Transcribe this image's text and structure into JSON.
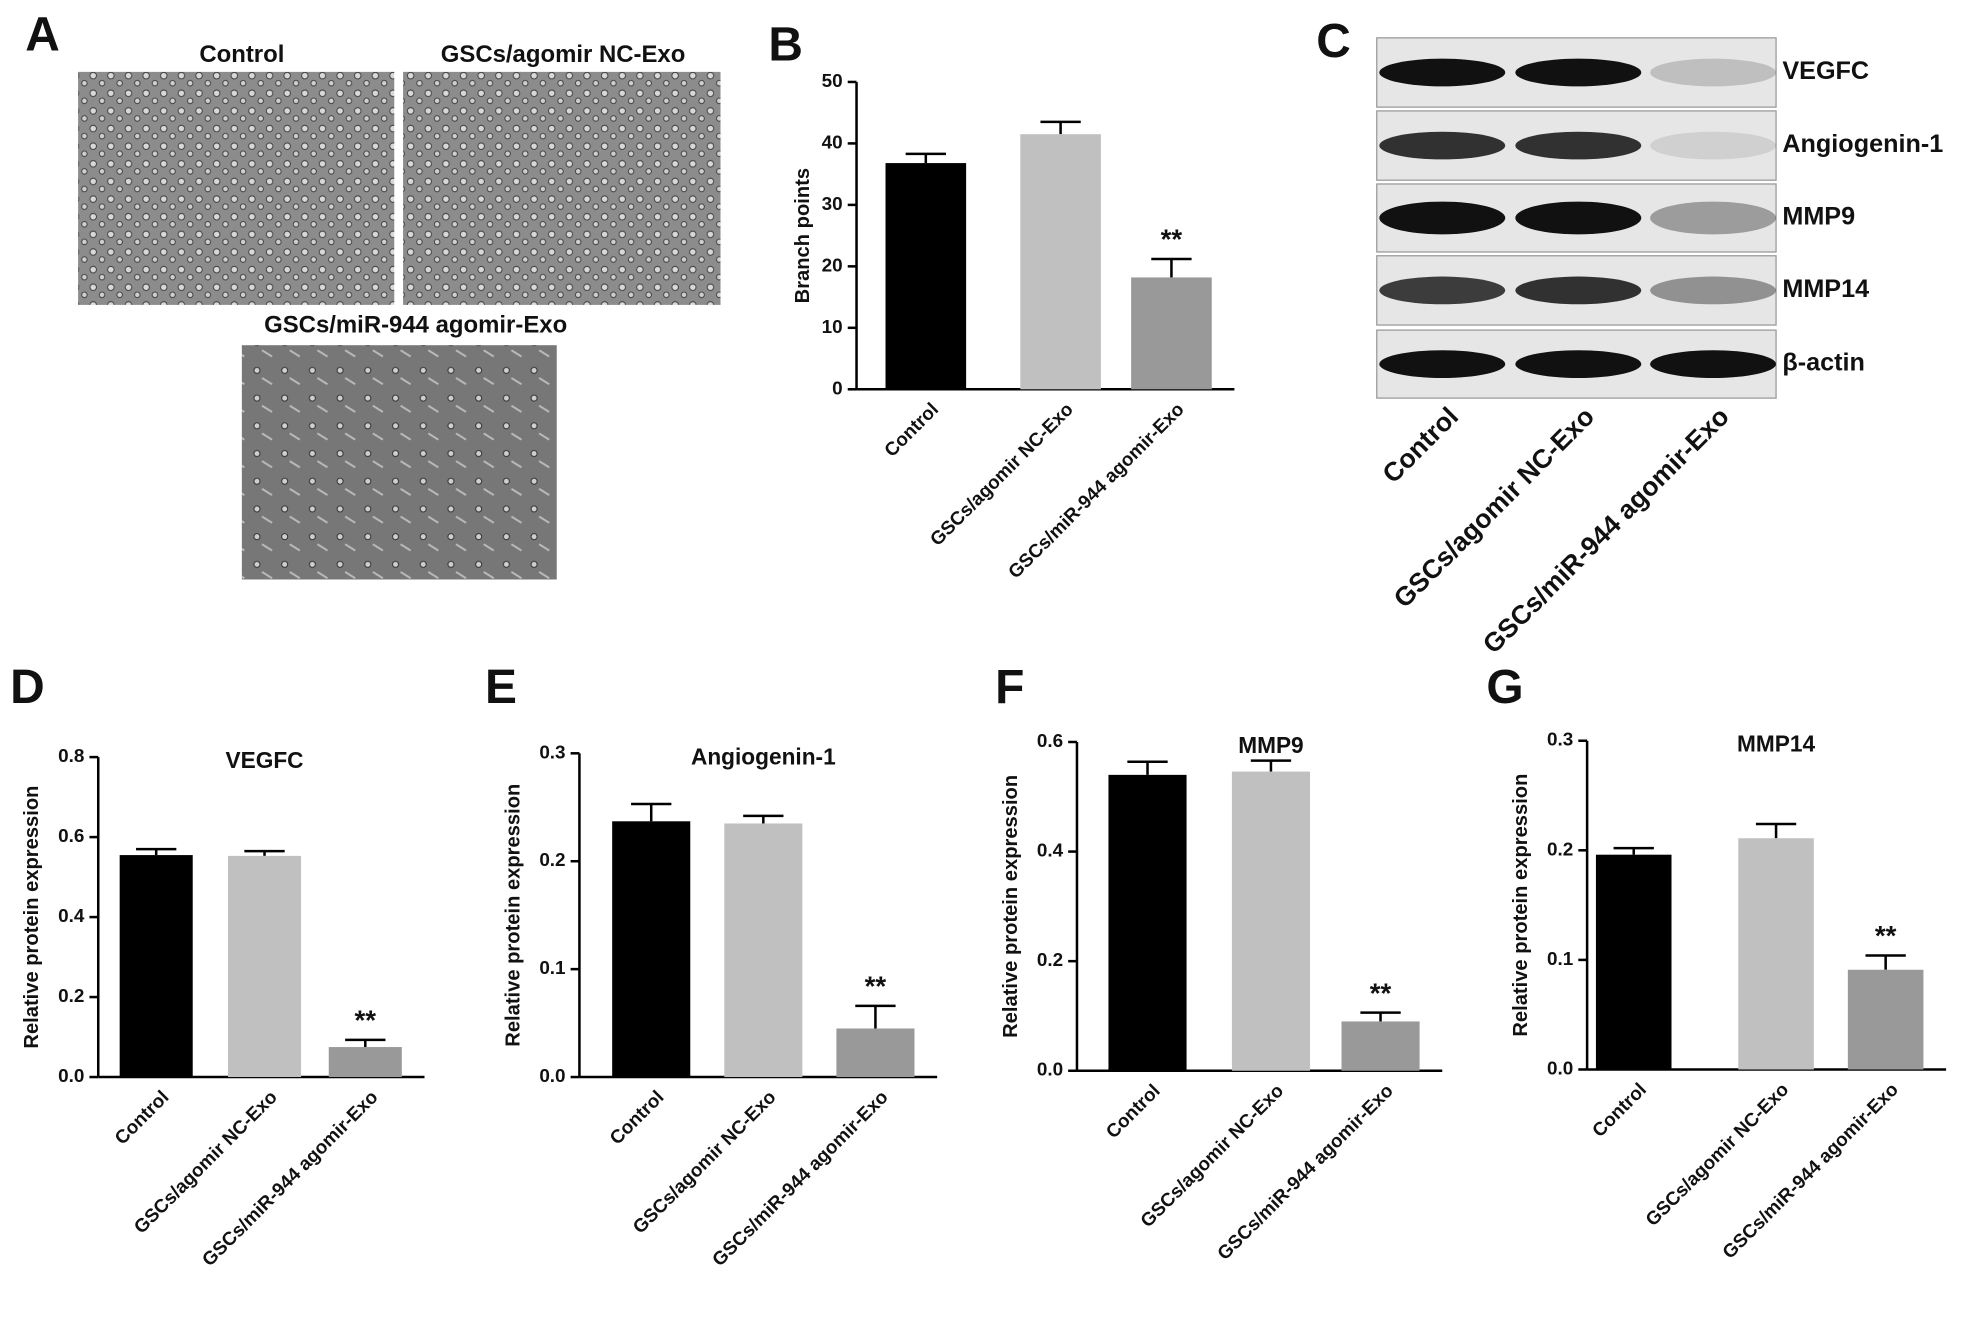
{
  "panel_labels": [
    "A",
    "B",
    "C",
    "D",
    "E",
    "F",
    "G"
  ],
  "micrographs": {
    "labels": [
      "Control",
      "GSCs/agomir NC-Exo",
      "GSCs/miR-944 agomir-Exo"
    ]
  },
  "blot": {
    "proteins": [
      "VEGFC",
      "Angiogenin-1",
      "MMP9",
      "MMP14",
      "β-actin"
    ],
    "lanes": [
      "Control",
      "GSCs/agomir NC-Exo",
      "GSCs/miR-944 agomir-Exo"
    ]
  },
  "chart_data": [
    {
      "type": "bar",
      "y_label": "Branch points",
      "categories": [
        "Control",
        "GSCs/agomir NC-Exo",
        "GSCs/miR-944 agomir-Exo"
      ],
      "values": [
        36.8,
        41.5,
        18.2
      ],
      "errors": [
        1.5,
        2.0,
        3.0
      ],
      "colors": [
        "#000000",
        "#c0c0c0",
        "#999999"
      ],
      "significance": [
        null,
        null,
        "**"
      ],
      "ylim": [
        0,
        50
      ],
      "yticks": [
        0,
        10,
        20,
        30,
        40,
        50
      ]
    },
    {
      "type": "bar",
      "title": "VEGFC",
      "y_label": "Relative protein expression",
      "categories": [
        "Control",
        "GSCs/agomir NC-Exo",
        "GSCs/miR-944 agomir-Exo"
      ],
      "values": [
        0.555,
        0.553,
        0.075
      ],
      "errors": [
        0.015,
        0.012,
        0.018
      ],
      "colors": [
        "#000000",
        "#c0c0c0",
        "#999999"
      ],
      "significance": [
        null,
        null,
        "**"
      ],
      "ylim": [
        0,
        0.8
      ],
      "yticks": [
        {
          "value": 0,
          "label": "0.0"
        },
        0.2,
        0.4,
        0.6,
        0.8
      ]
    },
    {
      "type": "bar",
      "title": "Angiogenin-1",
      "y_label": "Relative protein expression",
      "categories": [
        "Control",
        "GSCs/agomir NC-Exo",
        "GSCs/miR-944 agomir-Exo"
      ],
      "values": [
        0.237,
        0.235,
        0.045
      ],
      "errors": [
        0.016,
        0.007,
        0.021
      ],
      "colors": [
        "#000000",
        "#c0c0c0",
        "#999999"
      ],
      "significance": [
        null,
        null,
        "**"
      ],
      "ylim": [
        0,
        0.3
      ],
      "yticks": [
        {
          "value": 0,
          "label": "0.0"
        },
        0.1,
        0.2,
        0.3
      ]
    },
    {
      "type": "bar",
      "title": "MMP9",
      "y_label": "Relative protein expression",
      "categories": [
        "Control",
        "GSCs/agomir NC-Exo",
        "GSCs/miR-944 agomir-Exo"
      ],
      "values": [
        0.54,
        0.546,
        0.09
      ],
      "errors": [
        0.024,
        0.02,
        0.016
      ],
      "colors": [
        "#000000",
        "#c0c0c0",
        "#999999"
      ],
      "significance": [
        null,
        null,
        "**"
      ],
      "ylim": [
        0,
        0.6
      ],
      "yticks": [
        {
          "value": 0,
          "label": "0.0"
        },
        0.2,
        0.4,
        0.6
      ]
    },
    {
      "type": "bar",
      "title": "MMP14",
      "y_label": "Relative protein expression",
      "categories": [
        "Control",
        "GSCs/agomir NC-Exo",
        "GSCs/miR-944 agomir-Exo"
      ],
      "values": [
        0.196,
        0.211,
        0.091
      ],
      "errors": [
        0.006,
        0.013,
        0.013
      ],
      "colors": [
        "#000000",
        "#c0c0c0",
        "#999999"
      ],
      "significance": [
        null,
        null,
        "**"
      ],
      "ylim": [
        0,
        0.3
      ],
      "yticks": [
        {
          "value": 0,
          "label": "0.0"
        },
        0.1,
        0.2,
        0.3
      ]
    }
  ]
}
